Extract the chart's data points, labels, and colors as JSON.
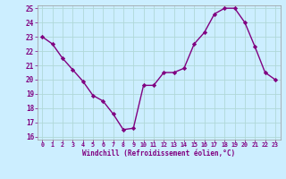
{
  "x": [
    0,
    1,
    2,
    3,
    4,
    5,
    6,
    7,
    8,
    9,
    10,
    11,
    12,
    13,
    14,
    15,
    16,
    17,
    18,
    19,
    20,
    21,
    22,
    23
  ],
  "y": [
    23.0,
    22.5,
    21.5,
    20.7,
    19.9,
    18.9,
    18.5,
    17.6,
    16.5,
    16.6,
    19.6,
    19.6,
    20.5,
    20.5,
    20.8,
    22.5,
    23.3,
    24.6,
    25.0,
    25.0,
    24.0,
    22.3,
    20.5,
    20.0
  ],
  "line_color": "#800080",
  "marker": "D",
  "marker_size": 2.2,
  "bg_color": "#cceeff",
  "grid_color": "#b0d8d8",
  "xlabel": "Windchill (Refroidissement éolien,°C)",
  "xlabel_color": "#800080",
  "tick_color": "#800080",
  "ylim": [
    16,
    25
  ],
  "xlim": [
    -0.5,
    23.5
  ],
  "yticks": [
    16,
    17,
    18,
    19,
    20,
    21,
    22,
    23,
    24,
    25
  ],
  "xticks": [
    0,
    1,
    2,
    3,
    4,
    5,
    6,
    7,
    8,
    9,
    10,
    11,
    12,
    13,
    14,
    15,
    16,
    17,
    18,
    19,
    20,
    21,
    22,
    23
  ],
  "linewidth": 1.0,
  "spine_color": "#999999",
  "title_color": "#800080"
}
